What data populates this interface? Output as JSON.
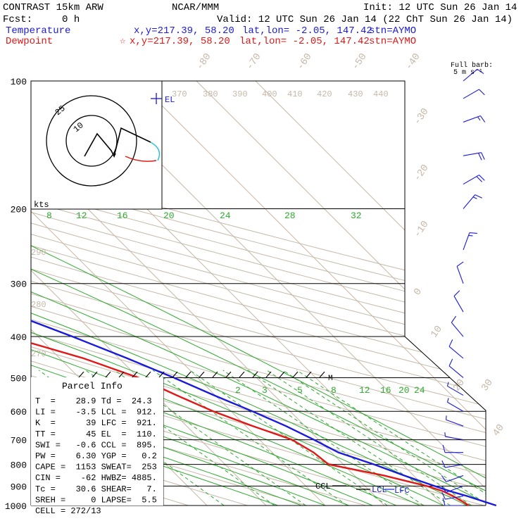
{
  "header": {
    "model": "CONTRAST 15km ARW",
    "center": "NCAR/MMM",
    "init": "Init: 12 UTC Sun 26 Jan 14",
    "fcst": "Fcst:     0 h",
    "valid": "Valid: 12 UTC Sun 26 Jan 14 (22 ChT Sun 26 Jan 14)",
    "temp_line": {
      "label": "Temperature",
      "xy": "x,y=217.39, 58.20",
      "latlon": "lat,lon= -2.05, 147.42",
      "stn": "stn=AYMO"
    },
    "dew_line": {
      "label": "Dewpoint",
      "star": "☆",
      "xy": "x,y=217.39, 58.20",
      "latlon": "lat,lon= -2.05, 147.42",
      "stn": "stn=AYMO"
    }
  },
  "barb_legend": {
    "line1": "Full barb:",
    "line2": "5 m s⁻¹"
  },
  "hodograph": {
    "units": "kts",
    "ring_labels": [
      "25",
      "10"
    ]
  },
  "parcel": {
    "title": "Parcel Info",
    "rows": [
      "T  =    28.9 Td =  24.3",
      "LI =    -3.5 LCL =  912.",
      "K  =      39 LFC =  921.",
      "TT =      45 EL  =  110.",
      "SWI =   -0.6 CCL =  895.",
      "PW =    6.30 YGP =   0.2",
      "CAPE =  1153 SWEAT=  253",
      "CIN =    -62 HWBZ= 4885.",
      "Tc =    30.6 SHEAR=   7.",
      "SREH =     0 LAPSE=  5.5",
      "CELL = 272/13"
    ]
  },
  "chart_data": {
    "type": "line",
    "title": "",
    "xlabel": "",
    "ylabel": "",
    "y_scale": "log-pressure (hPa), skew-T",
    "ylim": [
      1000,
      100
    ],
    "pressure_levels": [
      100,
      200,
      300,
      400,
      500,
      600,
      700,
      800,
      900,
      1000
    ],
    "isotherm_labels": [
      "-80",
      "-70",
      "-60",
      "-50",
      "-40",
      "-30",
      "-20",
      "-10",
      "0",
      "10",
      "20",
      "30",
      "40"
    ],
    "dry_adiabat_labels": [
      "370",
      "380",
      "390",
      "400",
      "410",
      "420",
      "430",
      "440",
      "290",
      "280",
      "270"
    ],
    "moist_labels_upper": [
      "8",
      "12",
      "16",
      "20",
      "24",
      "28",
      "32"
    ],
    "mixing_ratio_labels": [
      "2",
      "3",
      "5",
      "8",
      "12",
      "16",
      "20",
      "24"
    ],
    "series": [
      {
        "name": "Temperature",
        "color": "#1a1adc",
        "p": [
          1000,
          950,
          925,
          900,
          850,
          800,
          750,
          700,
          650,
          600,
          550,
          500,
          450,
          400,
          350,
          300,
          250,
          200,
          175,
          150,
          125,
          110,
          100
        ],
        "t": [
          28.9,
          25.6,
          23.5,
          21.8,
          18.4,
          15.2,
          11.2,
          9.2,
          6.8,
          3.6,
          -0.2,
          -4.0,
          -8.6,
          -14.2,
          -21.0,
          -28.8,
          -38.0,
          -49.5,
          -56.0,
          -63.5,
          -72.0,
          -78.0,
          -80.0
        ]
      },
      {
        "name": "Dewpoint",
        "color": "#e01818",
        "p": [
          1000,
          975,
          950,
          925,
          900,
          850,
          800,
          750,
          700,
          650,
          600,
          550,
          500,
          450,
          400,
          350,
          300,
          250,
          200,
          175,
          150,
          125,
          110,
          100
        ],
        "td": [
          24.3,
          23.8,
          23.2,
          22.3,
          20.5,
          15.0,
          7.5,
          7.0,
          5.5,
          1.2,
          -3.0,
          -6.5,
          -10.0,
          -16.0,
          -25.0,
          -33.0,
          -40.0,
          -48.0,
          -57.0,
          -63.0,
          -70.0,
          -79.0,
          -84.0,
          -88.0
        ]
      }
    ],
    "annotations": [
      "EL",
      "CCL",
      "LCL",
      "LFC",
      "M"
    ],
    "wind_barbs": [
      {
        "p": 1000,
        "dir": 270,
        "kt": 10
      },
      {
        "p": 950,
        "dir": 260,
        "kt": 10
      },
      {
        "p": 900,
        "dir": 250,
        "kt": 10
      },
      {
        "p": 850,
        "dir": 250,
        "kt": 10
      },
      {
        "p": 800,
        "dir": 260,
        "kt": 10
      },
      {
        "p": 750,
        "dir": 270,
        "kt": 10
      },
      {
        "p": 700,
        "dir": 280,
        "kt": 5
      },
      {
        "p": 650,
        "dir": 290,
        "kt": 5
      },
      {
        "p": 600,
        "dir": 300,
        "kt": 5
      },
      {
        "p": 550,
        "dir": 300,
        "kt": 5
      },
      {
        "p": 500,
        "dir": 310,
        "kt": 10
      },
      {
        "p": 450,
        "dir": 310,
        "kt": 10
      },
      {
        "p": 400,
        "dir": 320,
        "kt": 10
      },
      {
        "p": 350,
        "dir": 330,
        "kt": 10
      },
      {
        "p": 300,
        "dir": 340,
        "kt": 10
      },
      {
        "p": 250,
        "dir": 20,
        "kt": 15
      },
      {
        "p": 200,
        "dir": 40,
        "kt": 15
      },
      {
        "p": 175,
        "dir": 60,
        "kt": 20
      },
      {
        "p": 150,
        "dir": 80,
        "kt": 20
      },
      {
        "p": 125,
        "dir": 70,
        "kt": 15
      },
      {
        "p": 110,
        "dir": 60,
        "kt": 10
      },
      {
        "p": 100,
        "dir": 50,
        "kt": 10
      }
    ]
  }
}
